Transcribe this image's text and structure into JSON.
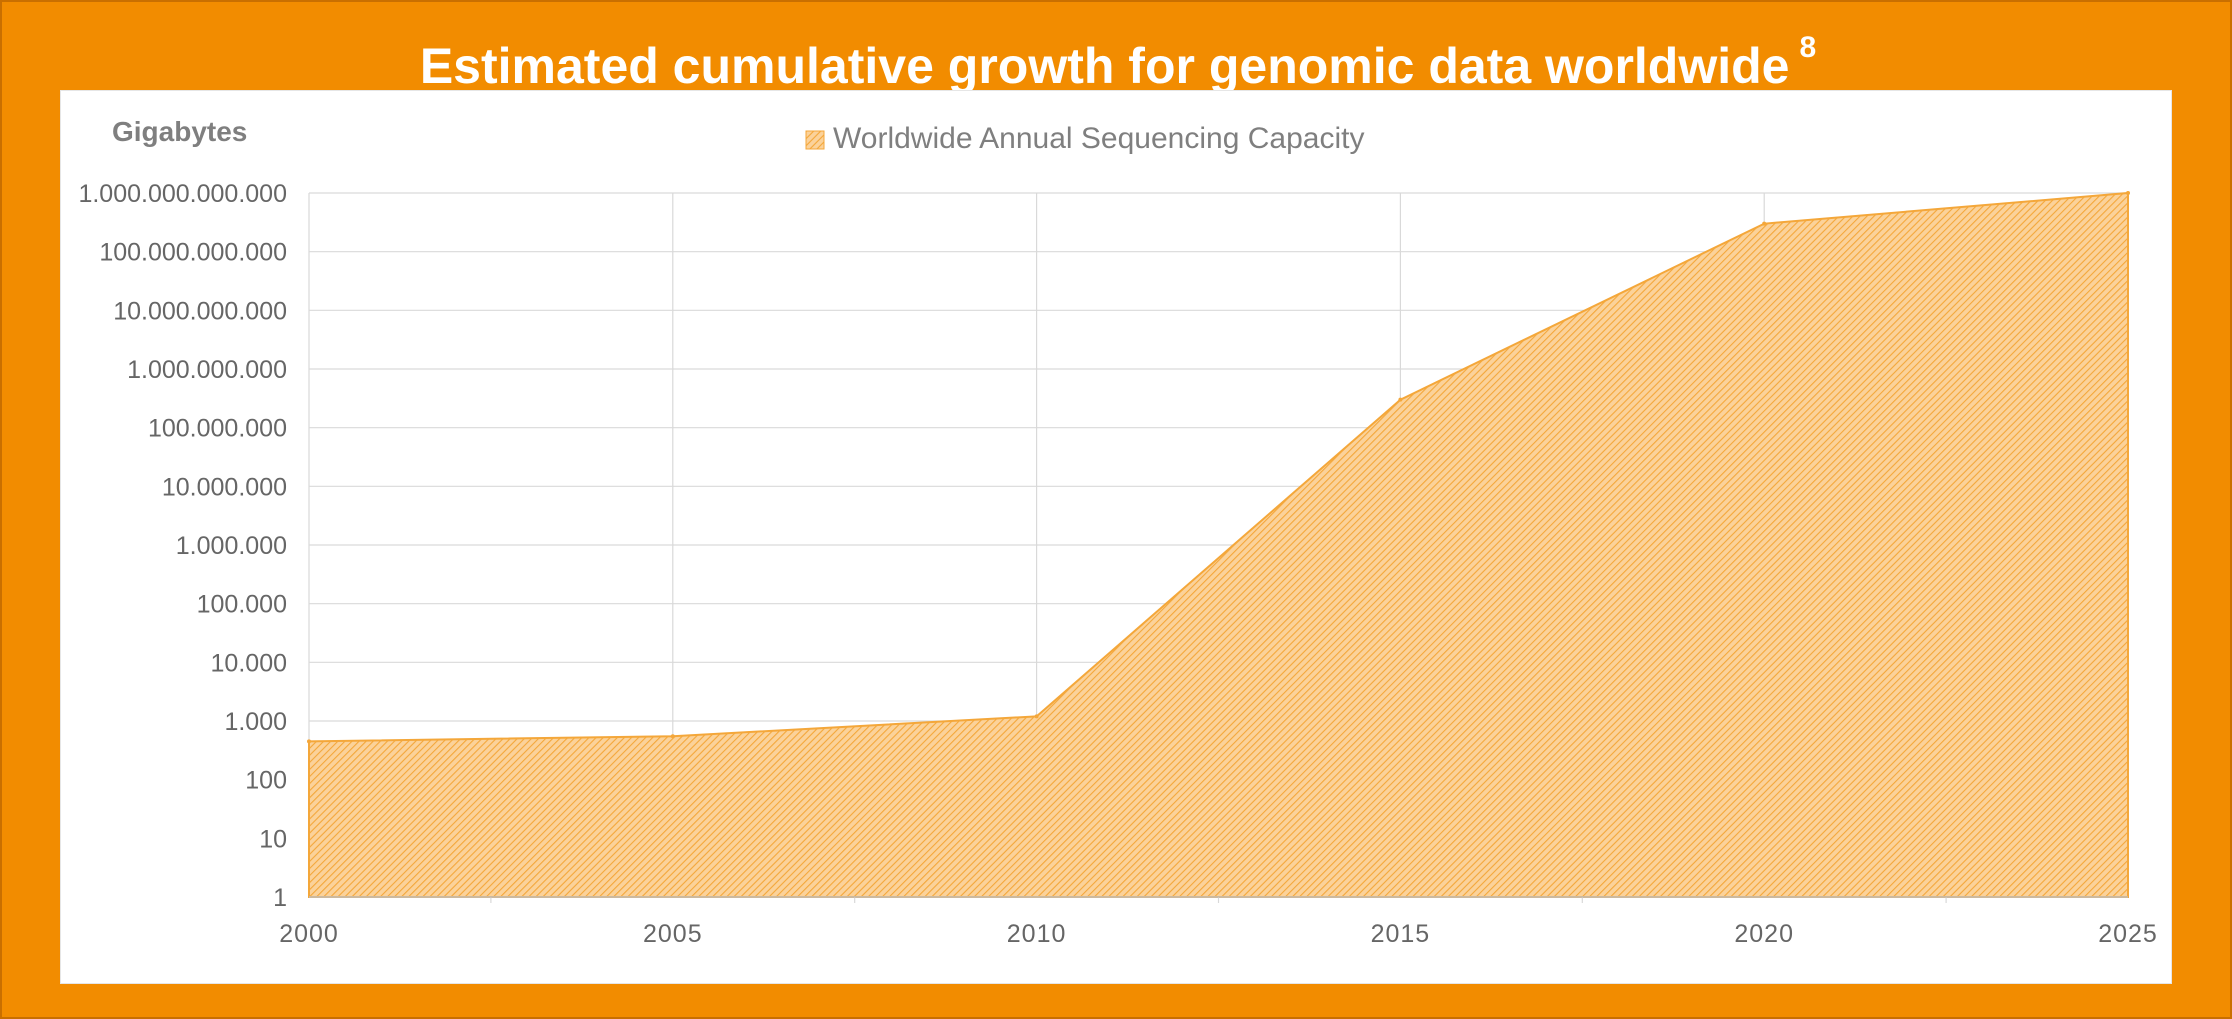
{
  "title": {
    "main": "Estimated cumulative growth for genomic data worldwide",
    "footnote": "8"
  },
  "colors": {
    "background": "#f28c00",
    "area": "#f7b44f",
    "area_stroke": "#f4a73a",
    "grid": "#d9d9d9",
    "axis_text": "#666666"
  },
  "chart_data": {
    "type": "area",
    "title": "",
    "ylabel": "Gigabytes",
    "xlabel": "",
    "y_scale": "log10",
    "ylim": [
      1,
      1000000000000
    ],
    "xlim": [
      2000,
      2025
    ],
    "x_ticks": [
      "2000",
      "2005",
      "2010",
      "2015",
      "2020",
      "2025"
    ],
    "y_ticks": [
      "1",
      "10",
      "100",
      "1.000",
      "10.000",
      "100.000",
      "1.000.000",
      "10.000.000",
      "100.000.000",
      "1.000.000.000",
      "10.000.000.000",
      "100.000.000.000",
      "1.000.000.000.000"
    ],
    "legend_position": "top-center",
    "grid": true,
    "series": [
      {
        "name": "Worldwide Annual Sequencing Capacity",
        "x": [
          2000,
          2005,
          2010,
          2015,
          2020,
          2025
        ],
        "values": [
          450,
          550,
          1200,
          300000000,
          300000000000,
          1000000000000
        ]
      }
    ]
  }
}
